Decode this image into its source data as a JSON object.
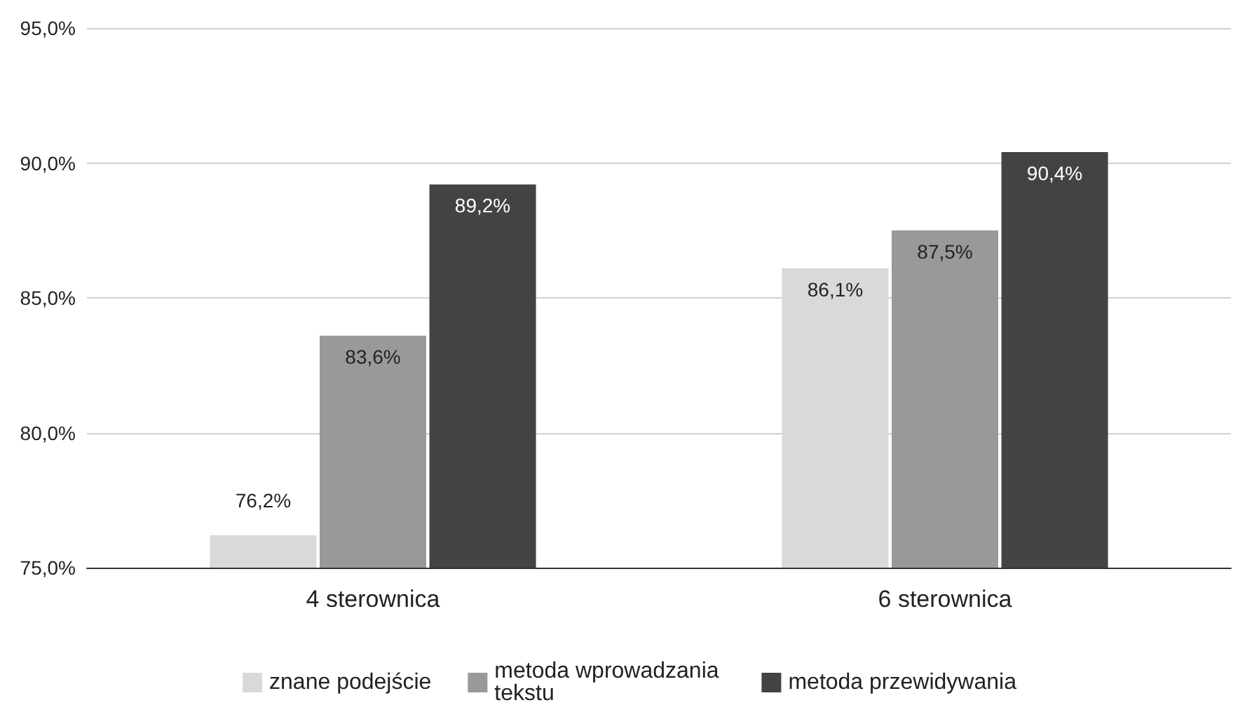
{
  "chart_data": {
    "type": "bar",
    "categories": [
      "4 sterownica",
      "6 sterownica"
    ],
    "series": [
      {
        "name": "znane podejście",
        "color": "#d9d9d9",
        "values": [
          76.2,
          86.1
        ],
        "value_labels": [
          "76,2%",
          "86,1%"
        ]
      },
      {
        "name": "metoda wprowadzania tekstu",
        "color": "#999999",
        "values": [
          83.6,
          87.5
        ],
        "value_labels": [
          "83,6%",
          "87,5%"
        ]
      },
      {
        "name": "metoda przewidywania",
        "color": "#434343",
        "values": [
          89.2,
          90.4
        ],
        "value_labels": [
          "89,2%",
          "90,4%"
        ]
      }
    ],
    "ylim": [
      75,
      95
    ],
    "yticks": [
      {
        "value": 75,
        "label": "75,0%"
      },
      {
        "value": 80,
        "label": "80,0%"
      },
      {
        "value": 85,
        "label": "85,0%"
      },
      {
        "value": 90,
        "label": "90,0%"
      },
      {
        "value": 95,
        "label": "95,0%"
      }
    ],
    "grid": "y",
    "legend": "bottom"
  }
}
